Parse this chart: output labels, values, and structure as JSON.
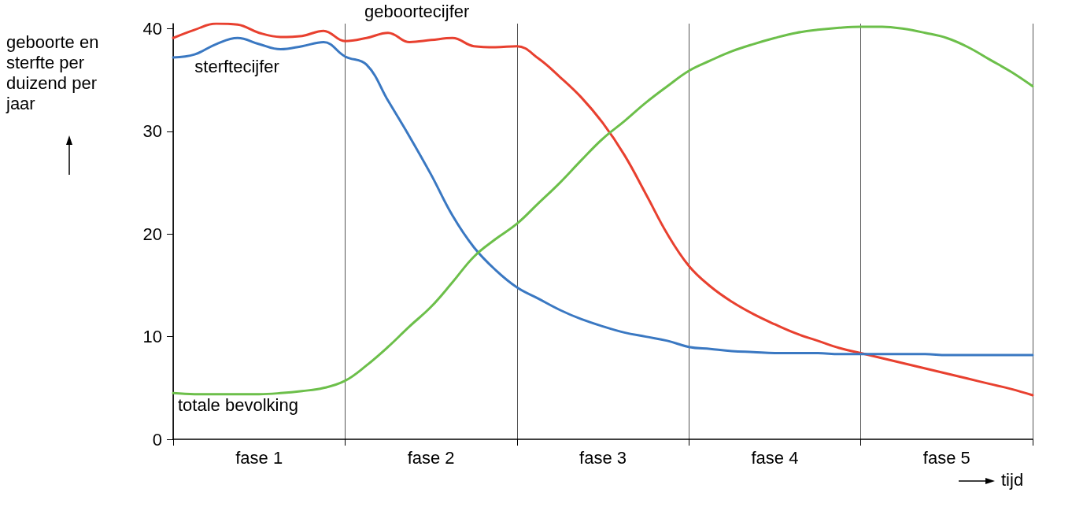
{
  "chart_data": {
    "type": "line",
    "xlabel": "tijd",
    "ylabel": "geboorte en sterfte per duizend per jaar",
    "categories": [
      null,
      null,
      null,
      null,
      "fase 1",
      null,
      null,
      null,
      null,
      null,
      null,
      null,
      "fase 2",
      null,
      null,
      null,
      null,
      null,
      null,
      null,
      "fase 3",
      null,
      null,
      null,
      null,
      null,
      null,
      null,
      "fase 4",
      null,
      null,
      null,
      null,
      null,
      null,
      null,
      "fase 5",
      null,
      null,
      null,
      null
    ],
    "ylim": [
      0,
      40.5
    ],
    "yticks": [
      0,
      10,
      20,
      30,
      40
    ],
    "grid": "x",
    "marker": "none",
    "line_style": "solid",
    "series": [
      {
        "name": "geboortecijfer",
        "color": "#e8402f",
        "values": [
          39.1,
          39.9,
          40.5,
          40.4,
          39.6,
          39.2,
          39.3,
          39.8,
          38.8,
          39.1,
          39.6,
          38.7,
          38.9,
          39.1,
          38.3,
          38.2,
          38.3,
          37.1,
          35.3,
          33.3,
          30.8,
          27.7,
          23.9,
          20.0,
          16.9,
          14.9,
          13.4,
          12.2,
          11.2,
          10.3,
          9.6,
          8.9,
          8.4,
          7.9,
          7.4,
          6.9,
          6.4,
          5.9,
          5.4,
          4.9,
          4.3
        ]
      },
      {
        "name": "sterftecijfer",
        "color": "#3a78c2",
        "values": [
          37.2,
          37.5,
          38.5,
          39.1,
          38.5,
          38.0,
          38.3,
          38.7,
          37.3,
          36.5,
          33.0,
          29.5,
          25.8,
          21.8,
          18.7,
          16.5,
          14.8,
          13.7,
          12.6,
          11.7,
          11.0,
          10.4,
          10.0,
          9.6,
          9.0,
          8.8,
          8.6,
          8.5,
          8.4,
          8.4,
          8.4,
          8.3,
          8.3,
          8.3,
          8.3,
          8.3,
          8.2,
          8.2,
          8.2,
          8.2,
          8.2
        ]
      },
      {
        "name": "totale bevolking",
        "color": "#6cbf4a",
        "values": [
          4.5,
          4.4,
          4.4,
          4.4,
          4.4,
          4.5,
          4.7,
          5.0,
          5.7,
          7.2,
          9.0,
          11.0,
          12.9,
          15.3,
          17.8,
          19.5,
          21.0,
          23.0,
          25.0,
          27.2,
          29.3,
          31.0,
          32.8,
          34.4,
          35.9,
          36.9,
          37.8,
          38.5,
          39.1,
          39.6,
          39.9,
          40.1,
          40.2,
          40.2,
          40.0,
          39.6,
          39.1,
          38.2,
          37.0,
          35.8,
          34.4
        ]
      }
    ]
  }
}
